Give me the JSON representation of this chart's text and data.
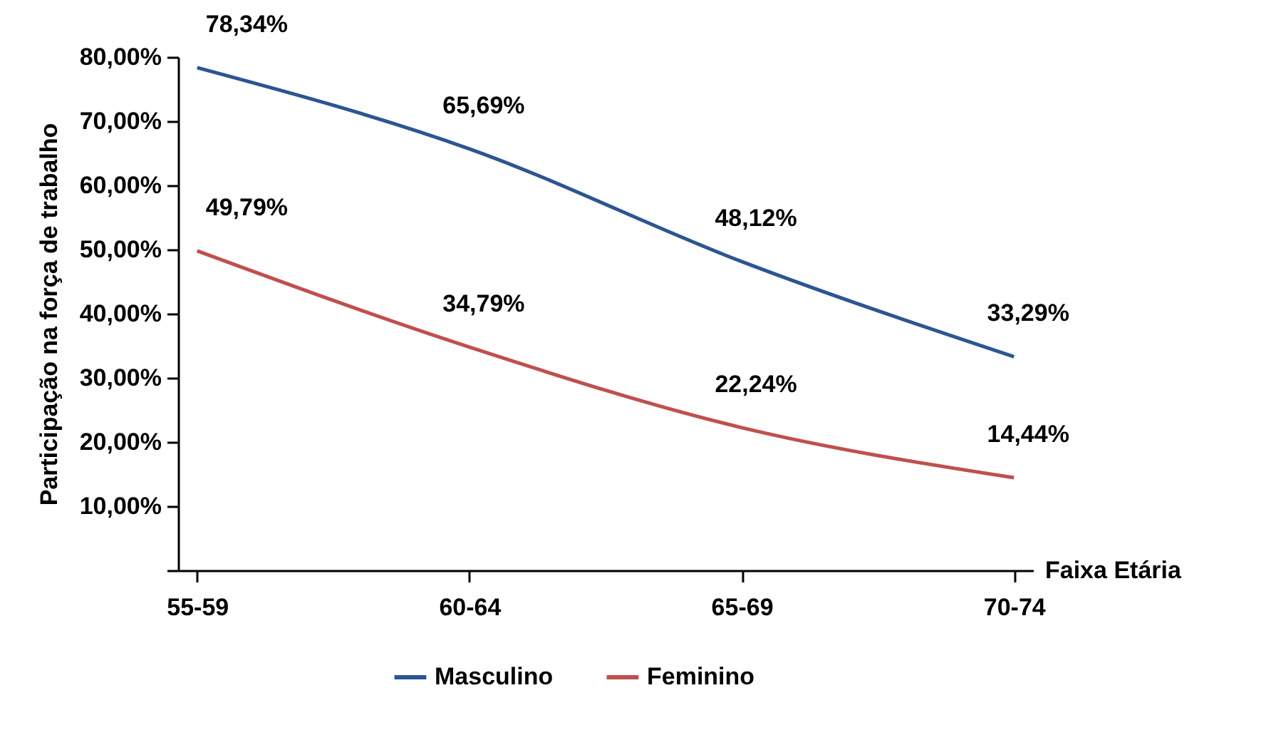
{
  "chart_data": {
    "type": "line",
    "xlabel": "Faixa Etária",
    "ylabel": "Participação na força de trabalho",
    "categories": [
      "55-59",
      "60-64",
      "65-69",
      "70-74"
    ],
    "series": [
      {
        "name": "Masculino",
        "color": "#2c5592",
        "values": [
          78.34,
          65.69,
          48.12,
          33.29
        ],
        "value_labels": [
          "78,34%",
          "65,69%",
          "48,12%",
          "33,29%"
        ]
      },
      {
        "name": "Feminino",
        "color": "#c0504d",
        "values": [
          49.79,
          34.79,
          22.24,
          14.44
        ],
        "value_labels": [
          "49,79%",
          "34,79%",
          "22,24%",
          "14,44%"
        ]
      }
    ],
    "ylim": [
      0,
      80
    ],
    "yticks": [
      {
        "value": 0,
        "label": null
      },
      {
        "value": 10,
        "label": "10,00%"
      },
      {
        "value": 20,
        "label": "20,00%"
      },
      {
        "value": 30,
        "label": "30,00%"
      },
      {
        "value": 40,
        "label": "40,00%"
      },
      {
        "value": 50,
        "label": "50,00%"
      },
      {
        "value": 60,
        "label": "60,00%"
      },
      {
        "value": 70,
        "label": "70,00%"
      },
      {
        "value": 80,
        "label": "80,00%"
      }
    ],
    "legend": "bottom",
    "line_style": "solid"
  }
}
